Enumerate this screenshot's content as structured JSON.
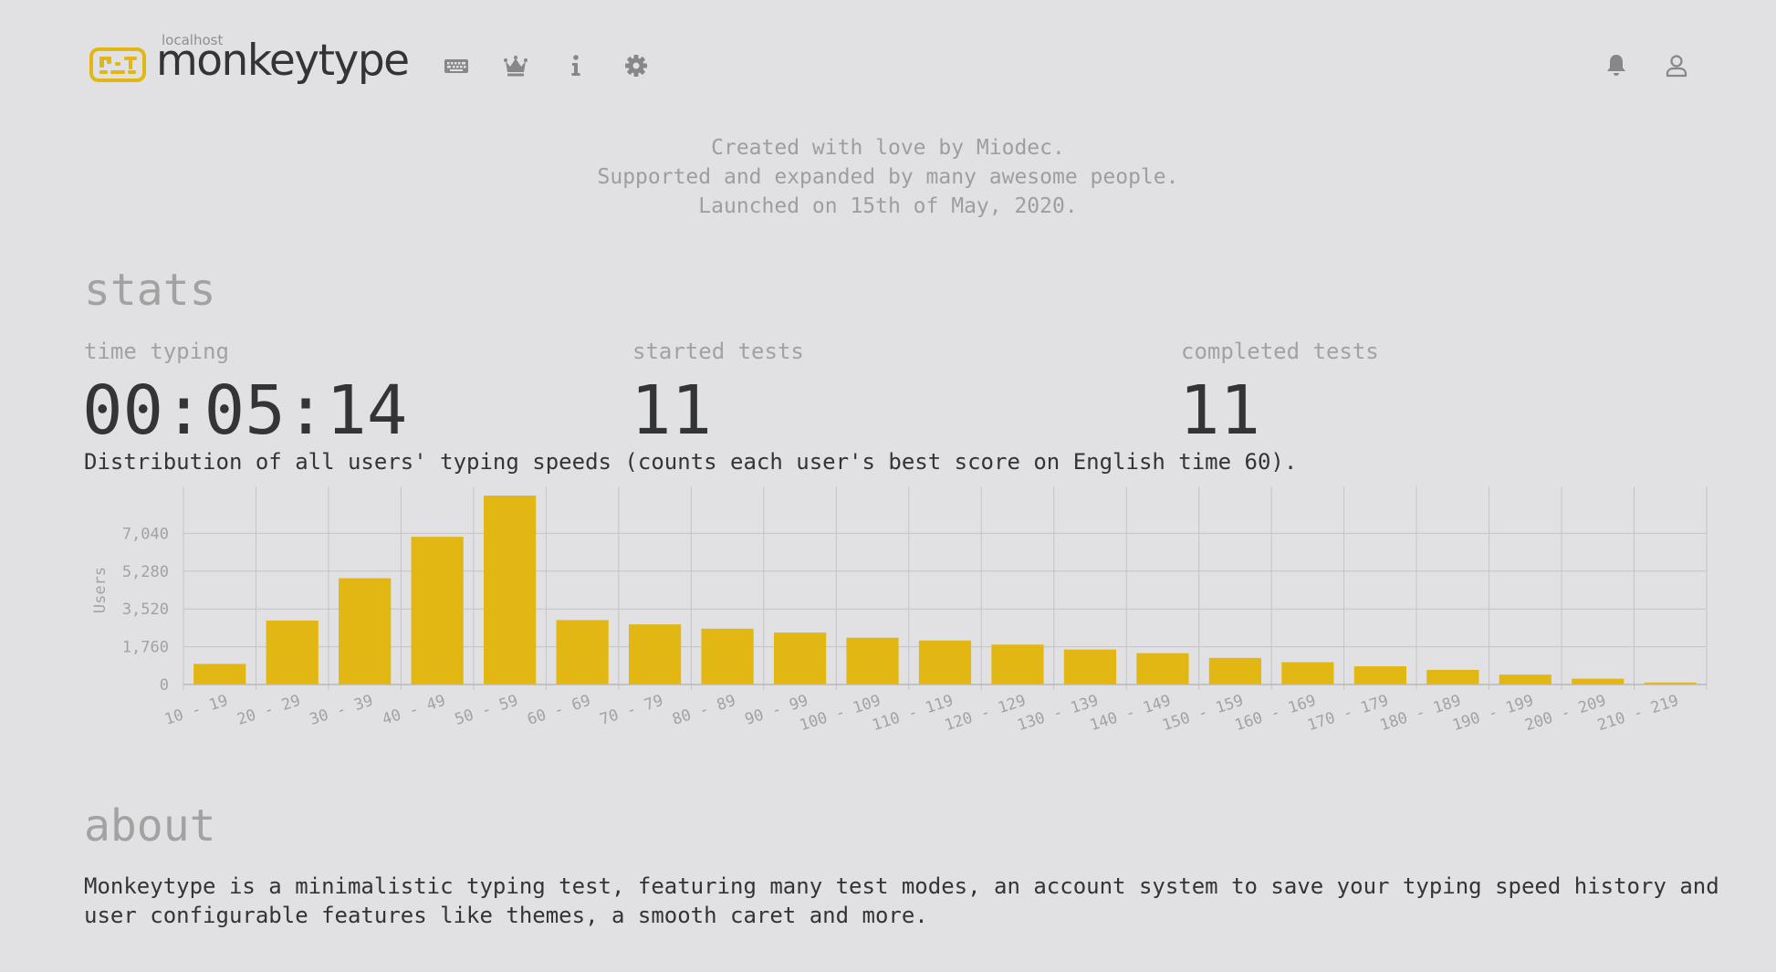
{
  "header": {
    "logo_sub": "localhost",
    "logo_text": "monkeytype",
    "nav": [
      {
        "name": "keyboard-icon"
      },
      {
        "name": "crown-icon"
      },
      {
        "name": "info-icon"
      },
      {
        "name": "gear-icon"
      }
    ],
    "right": [
      {
        "name": "bell-icon"
      },
      {
        "name": "user-icon"
      }
    ]
  },
  "credits": [
    "Created with love by Miodec.",
    "Supported and expanded by many awesome people.",
    "Launched on 15th of May, 2020."
  ],
  "stats": {
    "title": "stats",
    "time_typing_label": "time typing",
    "time_typing_value": "00:05:14",
    "started_tests_label": "started tests",
    "started_tests_value": "11",
    "completed_tests_label": "completed tests",
    "completed_tests_value": "11"
  },
  "distribution_text": "Distribution of all users' typing speeds (counts each user's best score on English time 60).",
  "chart_data": {
    "type": "bar",
    "ylabel": "Users",
    "ylim": [
      0,
      8800
    ],
    "yticks": [
      "0",
      "1,760",
      "3,520",
      "5,280",
      "7,040"
    ],
    "ytick_values": [
      0,
      1760,
      3520,
      5280,
      7040
    ],
    "categories": [
      "10 - 19",
      "20 - 29",
      "30 - 39",
      "40 - 49",
      "50 - 59",
      "60 - 69",
      "70 - 79",
      "80 - 89",
      "90 - 99",
      "100 - 109",
      "110 - 119",
      "120 - 129",
      "130 - 139",
      "140 - 149",
      "150 - 159",
      "160 - 169",
      "170 - 179",
      "180 - 189",
      "190 - 199",
      "200 - 209",
      "210 - 219"
    ],
    "values": [
      960,
      2980,
      4950,
      6880,
      8800,
      3000,
      2800,
      2600,
      2420,
      2180,
      2050,
      1860,
      1630,
      1460,
      1240,
      1040,
      850,
      680,
      460,
      270,
      90
    ],
    "grid": true,
    "color": "#e2b714"
  },
  "about": {
    "title": "about",
    "text": "Monkeytype is a minimalistic typing test, featuring many test modes, an account system to save your typing speed history and user configurable features like themes, a smooth caret and more."
  },
  "colors": {
    "background": "#e1e1e3",
    "accent": "#e2b714",
    "text": "#323437",
    "sub": "#a2a2a2"
  }
}
